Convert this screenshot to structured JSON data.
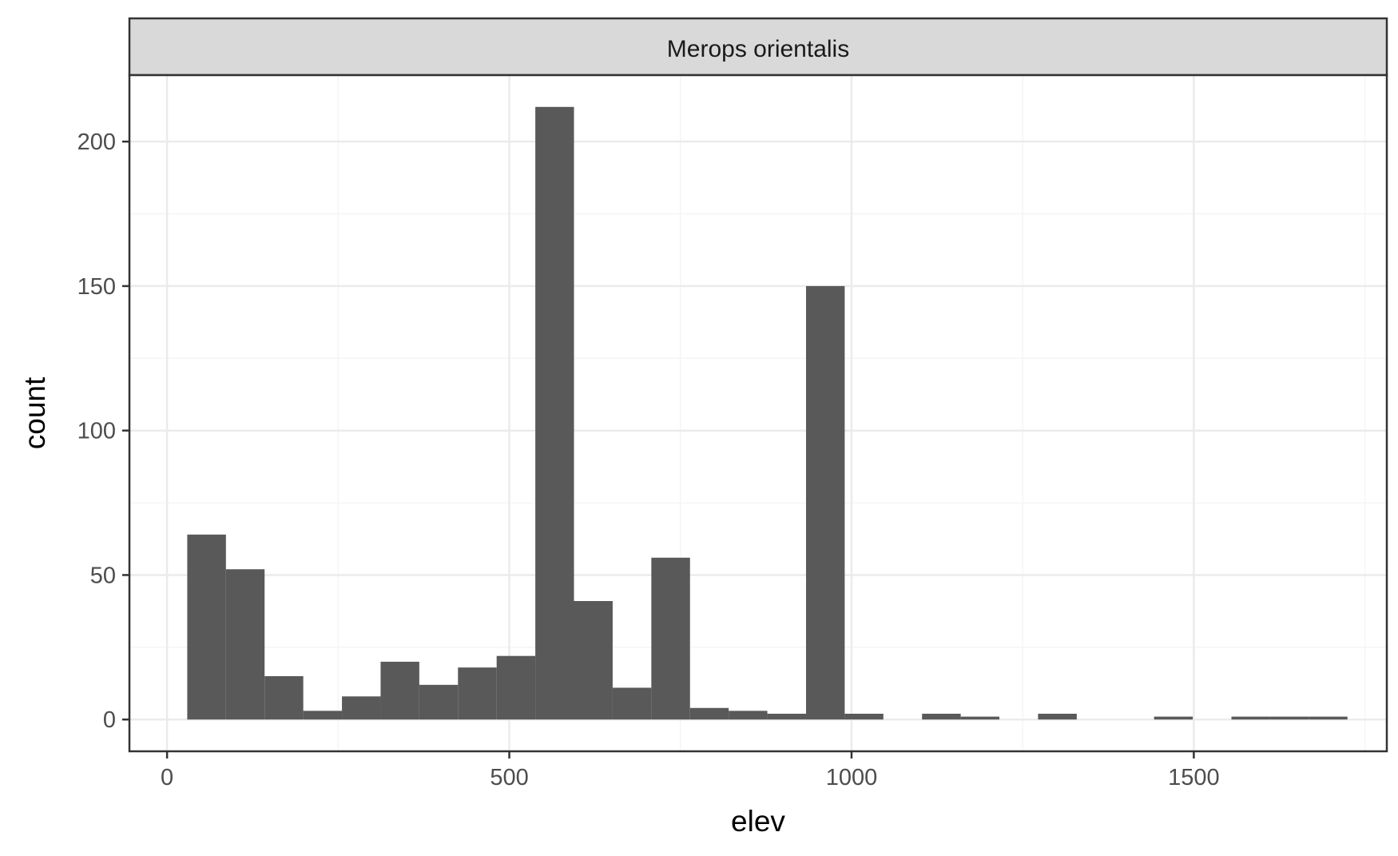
{
  "chart_data": {
    "type": "bar",
    "subtype": "histogram",
    "facet_label": "Merops orientalis",
    "xlabel": "elev",
    "ylabel": "count",
    "xlim": [
      -55,
      1782
    ],
    "ylim": [
      -11,
      223
    ],
    "x_ticks": [
      0,
      500,
      1000,
      1500
    ],
    "y_ticks": [
      0,
      50,
      100,
      150,
      200
    ],
    "x_tick_labels": [
      "0",
      "500",
      "1000",
      "1500"
    ],
    "y_tick_labels": [
      "0",
      "50",
      "100",
      "150",
      "200"
    ],
    "bin_width": 56.5,
    "bins": [
      {
        "x0": 29.5,
        "x1": 86.0,
        "count": 64
      },
      {
        "x0": 86.0,
        "x1": 142.5,
        "count": 52
      },
      {
        "x0": 142.5,
        "x1": 199.0,
        "count": 15
      },
      {
        "x0": 199.0,
        "x1": 255.5,
        "count": 3
      },
      {
        "x0": 255.5,
        "x1": 312.0,
        "count": 8
      },
      {
        "x0": 312.0,
        "x1": 368.5,
        "count": 20
      },
      {
        "x0": 368.5,
        "x1": 425.0,
        "count": 12
      },
      {
        "x0": 425.0,
        "x1": 481.5,
        "count": 18
      },
      {
        "x0": 481.5,
        "x1": 538.0,
        "count": 22
      },
      {
        "x0": 538.0,
        "x1": 594.5,
        "count": 212
      },
      {
        "x0": 594.5,
        "x1": 651.0,
        "count": 41
      },
      {
        "x0": 651.0,
        "x1": 707.5,
        "count": 11
      },
      {
        "x0": 707.5,
        "x1": 764.0,
        "count": 56
      },
      {
        "x0": 764.0,
        "x1": 820.5,
        "count": 4
      },
      {
        "x0": 820.5,
        "x1": 877.0,
        "count": 3
      },
      {
        "x0": 877.0,
        "x1": 933.5,
        "count": 2
      },
      {
        "x0": 933.5,
        "x1": 990.0,
        "count": 150
      },
      {
        "x0": 990.0,
        "x1": 1046.5,
        "count": 2
      },
      {
        "x0": 1046.5,
        "x1": 1103.0,
        "count": 0
      },
      {
        "x0": 1103.0,
        "x1": 1159.5,
        "count": 2
      },
      {
        "x0": 1159.5,
        "x1": 1216.0,
        "count": 1
      },
      {
        "x0": 1216.0,
        "x1": 1272.5,
        "count": 0
      },
      {
        "x0": 1272.5,
        "x1": 1329.0,
        "count": 2
      },
      {
        "x0": 1329.0,
        "x1": 1385.5,
        "count": 0
      },
      {
        "x0": 1385.5,
        "x1": 1442.0,
        "count": 0
      },
      {
        "x0": 1442.0,
        "x1": 1498.5,
        "count": 1
      },
      {
        "x0": 1498.5,
        "x1": 1555.0,
        "count": 0
      },
      {
        "x0": 1555.0,
        "x1": 1611.5,
        "count": 1
      },
      {
        "x0": 1611.5,
        "x1": 1668.0,
        "count": 1
      },
      {
        "x0": 1668.0,
        "x1": 1724.5,
        "count": 1
      }
    ],
    "grid": true,
    "legend": "none",
    "colors": {
      "bar": "#595959",
      "strip_fill": "#d9d9d9",
      "border": "#333333",
      "grid_major": "#ebebeb",
      "grid_minor": "#f5f5f5",
      "tick_text": "#4d4d4d"
    }
  }
}
